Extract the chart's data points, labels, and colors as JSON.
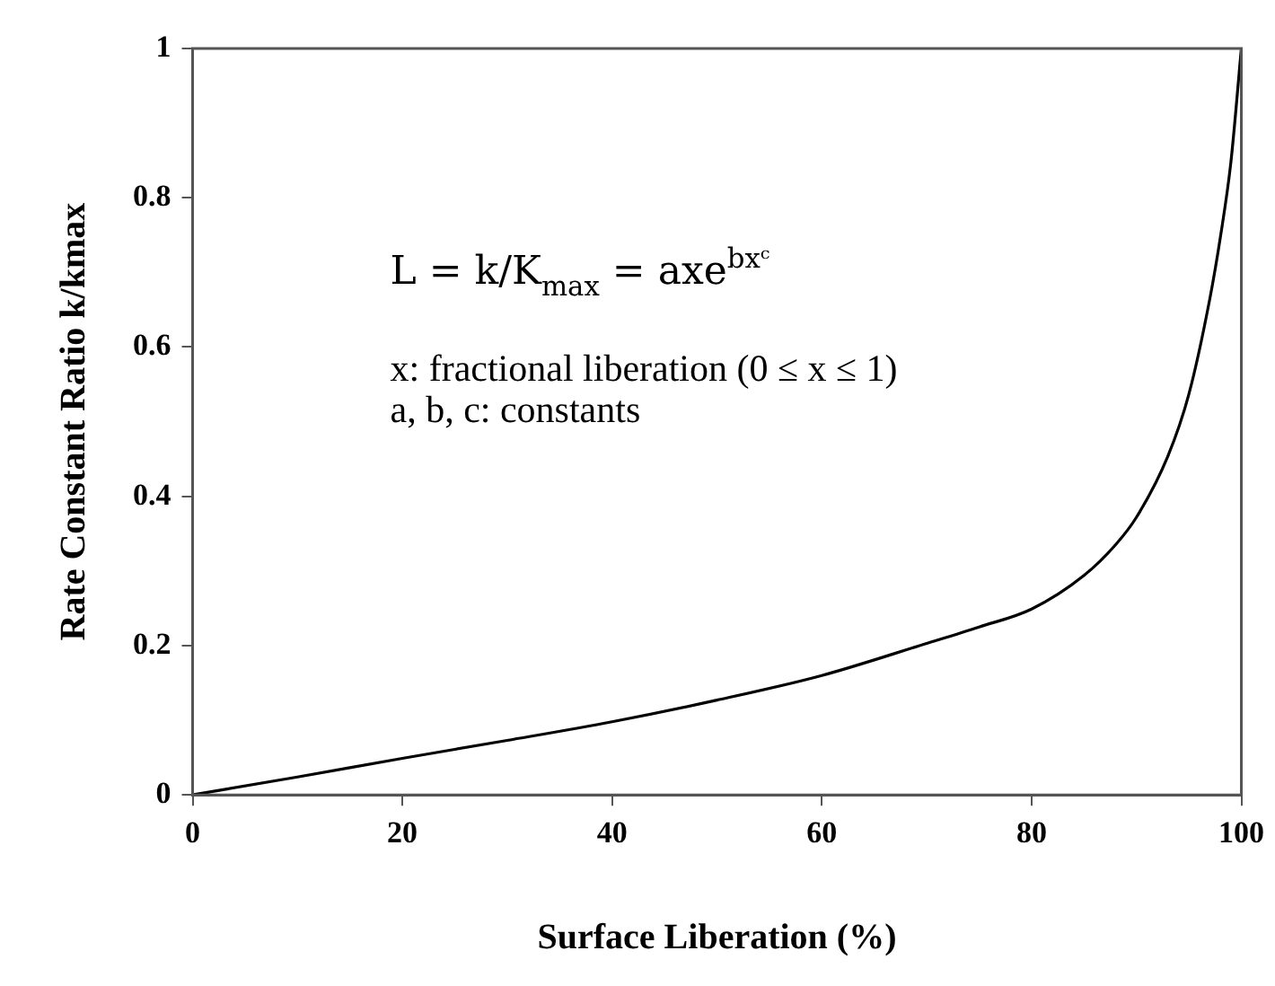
{
  "chart_data": {
    "type": "line",
    "xlabel": "Surface Liberation (%)",
    "ylabel": "Rate Constant Ratio k/kmax",
    "annotations": [
      "L = k/K$_{max}$ = axe$^{bxᶜ}$",
      "x: fractional liberation (0 ≤ x ≤ 1)",
      "a, b, c: constants"
    ],
    "series": [
      {
        "color": "#000000",
        "x": [
          0,
          10,
          20,
          30,
          40,
          50,
          60,
          70,
          75,
          80,
          85,
          88,
          90,
          93,
          95,
          97,
          98,
          99,
          100
        ],
        "values": [
          0,
          0.024,
          0.049,
          0.073,
          0.098,
          0.127,
          0.16,
          0.203,
          0.225,
          0.249,
          0.294,
          0.335,
          0.372,
          0.454,
          0.537,
          0.665,
          0.747,
          0.847,
          1
        ]
      }
    ],
    "xlim": [
      0,
      100
    ],
    "xticks": [
      0,
      20,
      40,
      60,
      80,
      100
    ],
    "ylim": [
      0,
      1
    ],
    "yticks": [
      0,
      0.2,
      0.4,
      0.6,
      0.8,
      1
    ],
    "grid": false,
    "legend": false,
    "marker": "none",
    "line_style": "solid"
  }
}
